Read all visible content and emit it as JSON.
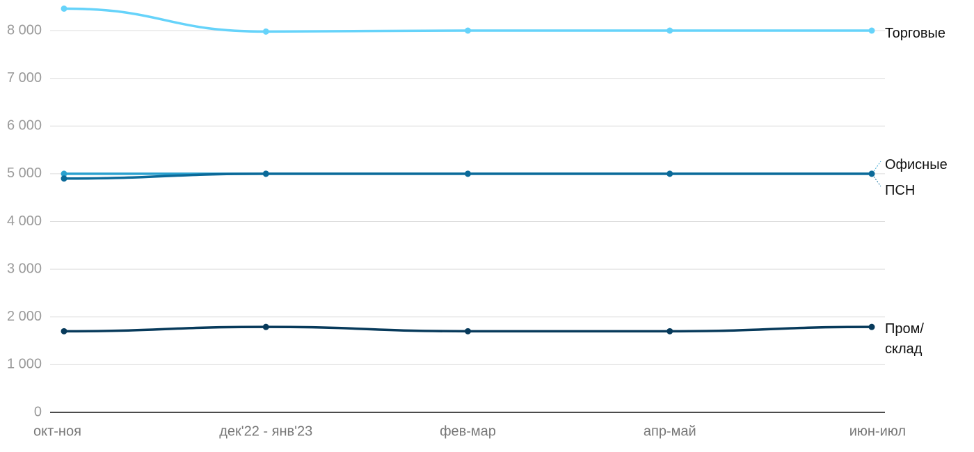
{
  "chart_data": {
    "type": "line",
    "categories": [
      "окт-ноя",
      "дек'22 - янв'23",
      "фев-мар",
      "апр-май",
      "июн-июл"
    ],
    "series": [
      {
        "name": "Торговые",
        "color": "#66d3fa",
        "values": [
          8460,
          7980,
          8000,
          8000,
          8000
        ]
      },
      {
        "name": "Офисные",
        "color": "#2aa1cf",
        "values": [
          5000,
          5000,
          5000,
          5000,
          5000
        ]
      },
      {
        "name": "ПСН",
        "color": "#0b6a99",
        "values": [
          4900,
          5000,
          5000,
          5000,
          5000
        ]
      },
      {
        "name": "Пром/ склад",
        "color": "#073a5b",
        "values": [
          1700,
          1790,
          1700,
          1700,
          1790
        ]
      }
    ],
    "ylim": [
      0,
      8000
    ],
    "yticks": [
      0,
      {
        "value": 1000,
        "label": "1 000"
      },
      {
        "value": 2000,
        "label": "2 000"
      },
      {
        "value": 3000,
        "label": "3 000"
      },
      {
        "value": 4000,
        "label": "4 000"
      },
      {
        "value": 5000,
        "label": "5 000"
      },
      {
        "value": 6000,
        "label": "6 000"
      },
      {
        "value": 7000,
        "label": "7 000"
      },
      {
        "value": 8000,
        "label": "8 000"
      }
    ],
    "grid": true
  }
}
